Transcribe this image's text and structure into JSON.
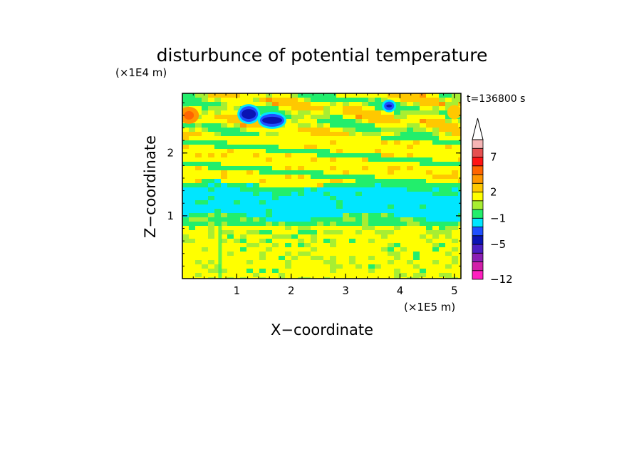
{
  "chart_data": {
    "type": "heatmap",
    "title": "disturbunce of potential temperature",
    "xlabel": "X−coordinate",
    "ylabel": "Z−coordinate",
    "x_scale_label": "(×1E5 m)",
    "y_scale_label": "(×1E4 m)",
    "time_label": "t=136800 s",
    "xlim": [
      0,
      5.12
    ],
    "ylim": [
      0,
      2.95
    ],
    "x_ticks": [
      "1",
      "2",
      "3",
      "4",
      "5"
    ],
    "y_ticks": [
      "1",
      "2"
    ],
    "colorbar": {
      "levels": [
        -12,
        -10,
        -8,
        -7,
        -5,
        -4,
        -3,
        -1,
        0,
        1,
        2,
        3,
        4,
        6,
        7,
        8,
        10
      ],
      "colors": [
        "#ff1fbf",
        "#d21fa9",
        "#8c1fb4",
        "#4b1fc3",
        "#0a14b4",
        "#1f50ff",
        "#00e6ff",
        "#22ee6c",
        "#a8ee32",
        "#ffff00",
        "#ffc800",
        "#ff9600",
        "#ff6400",
        "#ff1414",
        "#e65050",
        "#f5b4b4"
      ],
      "extend": "max",
      "tick_labels": [
        "7",
        "2",
        "−1",
        "−5",
        "−12"
      ],
      "tick_values": [
        7,
        2,
        -1,
        -5,
        -12
      ]
    },
    "bands": [
      {
        "z": [
          0.0,
          0.08
        ],
        "level": "yellow"
      },
      {
        "z": [
          0.08,
          0.85
        ],
        "level": "lime",
        "note": "yellow with green patches"
      },
      {
        "z": [
          0.85,
          0.98
        ],
        "level": "green"
      },
      {
        "z": [
          0.98,
          1.4
        ],
        "level": "cyan"
      },
      {
        "z": [
          1.4,
          1.5
        ],
        "level": "green"
      },
      {
        "z": [
          1.5,
          2.25
        ],
        "level": "yellow"
      },
      {
        "z": [
          2.25,
          2.95
        ],
        "level": "mixed",
        "note": "orange/green/blue cells near top"
      }
    ]
  }
}
